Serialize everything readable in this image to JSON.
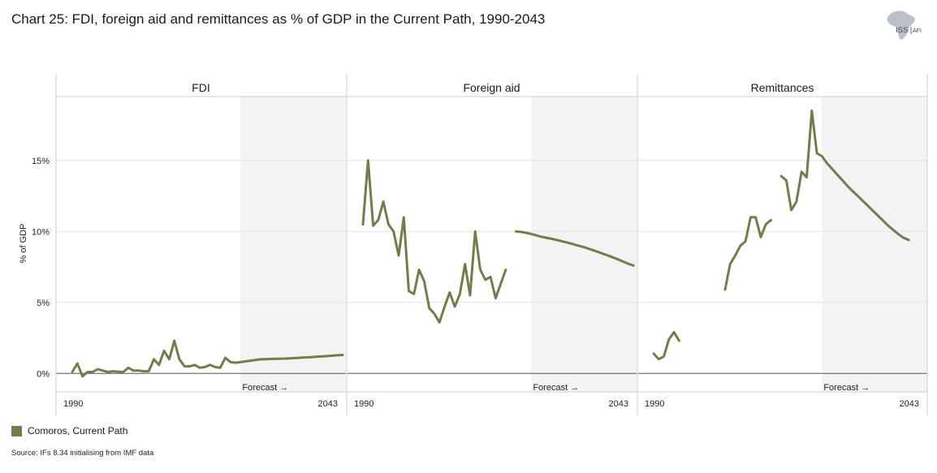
{
  "title": "Chart 25: FDI, foreign aid and remittances as % of GDP in the Current Path, 1990-2043",
  "logo": {
    "text_left": "ISS",
    "text_right": "AFI"
  },
  "source": "Source: IFs 8.34 initialising from IMF data",
  "legend": [
    {
      "label": "Comoros, Current Path",
      "color": "#737d4c"
    }
  ],
  "colors": {
    "series": "#737d4c",
    "forecast_shade": "#f3f3f3",
    "gridline": "#e3e3e3",
    "panel_border": "#cfcfcf"
  },
  "chart_data": {
    "type": "line",
    "ylabel": "% of GDP",
    "yticks": [
      0,
      5,
      10,
      15
    ],
    "ytick_labels": [
      "0%",
      "5%",
      "10%",
      "15%"
    ],
    "ylim": [
      -1.3,
      19.5
    ],
    "xlim": [
      1990,
      2043
    ],
    "x_tick_labels": [
      "1990",
      "2043"
    ],
    "forecast_start": 2023,
    "forecast_label": "Forecast →",
    "grid": true,
    "legend_position": "bottom-left",
    "panels": [
      {
        "name": "FDI",
        "series": [
          {
            "x": [
              1990,
              1991,
              1992,
              1993,
              1994,
              1995,
              1996,
              1997,
              1998,
              1999,
              2000,
              2001,
              2002,
              2003,
              2004,
              2005,
              2006,
              2007,
              2008,
              2009,
              2010,
              2011,
              2012,
              2013,
              2014,
              2015,
              2016,
              2017,
              2018,
              2019,
              2020,
              2021,
              2022,
              2023,
              2024,
              2025,
              2026,
              2027,
              2028,
              2029,
              2030,
              2031,
              2032,
              2033,
              2034,
              2035,
              2036,
              2037,
              2038,
              2039,
              2040,
              2041,
              2042,
              2043
            ],
            "y": [
              0.1,
              0.7,
              -0.2,
              0.1,
              0.1,
              0.3,
              0.2,
              0.1,
              0.15,
              0.12,
              0.1,
              0.4,
              0.2,
              0.2,
              0.15,
              0.15,
              1.0,
              0.6,
              1.6,
              1.0,
              2.3,
              1.0,
              0.5,
              0.5,
              0.6,
              0.4,
              0.45,
              0.6,
              0.45,
              0.4,
              1.1,
              0.8,
              0.75,
              0.8,
              0.85,
              0.9,
              0.95,
              1.0,
              1.0,
              1.02,
              1.03,
              1.04,
              1.05,
              1.07,
              1.09,
              1.11,
              1.13,
              1.15,
              1.18,
              1.2,
              1.22,
              1.25,
              1.28,
              1.3
            ]
          }
        ]
      },
      {
        "name": "Foreign aid",
        "series": [
          {
            "x": [
              1990,
              1991,
              1992,
              1993,
              1994,
              1995,
              1996,
              1997,
              1998,
              1999,
              2000,
              2001,
              2002,
              2003,
              2004,
              2005,
              2006,
              2007,
              2008,
              2009,
              2010,
              2011,
              2012,
              2013,
              2014,
              2015,
              2016,
              2017,
              2018,
              2019,
              2020
            ],
            "y": [
              10.5,
              15.0,
              10.4,
              10.8,
              12.1,
              10.5,
              10.0,
              8.3,
              11.0,
              5.8,
              5.6,
              7.3,
              6.5,
              4.6,
              4.2,
              3.6,
              4.7,
              5.7,
              4.7,
              5.6,
              7.7,
              5.5,
              10.0,
              7.3,
              6.6,
              6.8,
              5.3,
              6.3,
              7.3,
              null,
              null
            ]
          },
          {
            "x": [
              2020,
              2021,
              2022,
              2023,
              2024,
              2025,
              2026,
              2027,
              2028,
              2029,
              2030,
              2031,
              2032,
              2033,
              2034,
              2035,
              2036,
              2037,
              2038,
              2039,
              2040,
              2041,
              2042,
              2043
            ],
            "y": [
              10.0,
              9.96,
              9.9,
              9.82,
              9.72,
              9.62,
              9.55,
              9.48,
              9.4,
              9.31,
              9.22,
              9.12,
              9.02,
              8.92,
              8.81,
              8.69,
              8.57,
              8.44,
              8.31,
              8.17,
              8.03,
              7.88,
              7.73,
              7.6
            ]
          }
        ]
      },
      {
        "name": "Remittances",
        "series": [
          {
            "x": [
              1990,
              1991,
              1992,
              1993,
              1994,
              1995
            ],
            "y": [
              1.4,
              1.0,
              1.2,
              2.4,
              2.9,
              2.3
            ]
          },
          {
            "x": [
              2004,
              2005,
              2006,
              2007,
              2008,
              2009,
              2010,
              2011,
              2012,
              2013
            ],
            "y": [
              5.9,
              7.7,
              8.3,
              9.0,
              9.3,
              11.0,
              11.0,
              9.6,
              10.5,
              10.8
            ]
          },
          {
            "x": [
              2015,
              2016,
              2017,
              2018,
              2019,
              2020,
              2021,
              2022,
              2023,
              2024,
              2025,
              2026,
              2027,
              2028,
              2029,
              2030,
              2031,
              2032,
              2033,
              2034,
              2035,
              2036,
              2037,
              2038,
              2039,
              2040,
              2041,
              2042,
              2043
            ],
            "y": [
              13.9,
              13.6,
              11.5,
              12.1,
              14.2,
              13.8,
              18.5,
              15.5,
              15.3,
              14.8,
              14.4,
              14.0,
              13.6,
              13.2,
              12.85,
              12.5,
              12.15,
              11.8,
              11.45,
              11.1,
              10.75,
              10.4,
              10.1,
              9.8,
              9.55,
              9.4,
              null,
              null,
              null
            ]
          }
        ]
      }
    ]
  }
}
